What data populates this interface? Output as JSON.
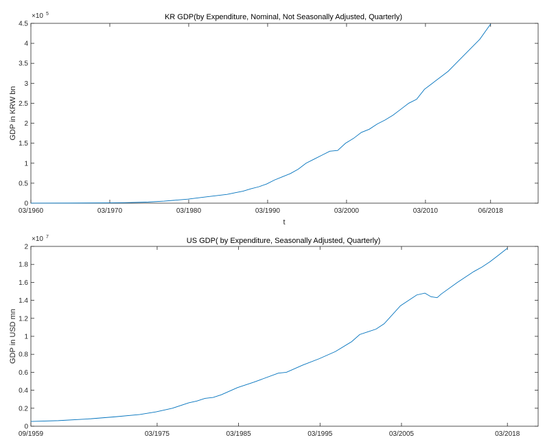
{
  "chart_data": [
    {
      "type": "line",
      "title": "KR GDP(by Expenditure, Nominal, Not Seasonally Adjusted, Quarterly)",
      "xlabel": "t",
      "ylabel": "GDP in KRW bn",
      "y_exponent_base": "×10",
      "y_exponent": "5",
      "x_range": [
        1960.125,
        2024.4
      ],
      "ylim": [
        0,
        4.5
      ],
      "x_ticks": [
        {
          "x": 1960.125,
          "label": "03/1960"
        },
        {
          "x": 1970.125,
          "label": "03/1970"
        },
        {
          "x": 1980.125,
          "label": "03/1980"
        },
        {
          "x": 1990.125,
          "label": "03/1990"
        },
        {
          "x": 2000.125,
          "label": "03/2000"
        },
        {
          "x": 2010.125,
          "label": "03/2010"
        },
        {
          "x": 2018.375,
          "label": "06/2018"
        }
      ],
      "y_ticks": [
        {
          "y": 0,
          "label": "0"
        },
        {
          "y": 0.5,
          "label": "0.5"
        },
        {
          "y": 1,
          "label": "1"
        },
        {
          "y": 1.5,
          "label": "1.5"
        },
        {
          "y": 2,
          "label": "2"
        },
        {
          "y": 2.5,
          "label": "2.5"
        },
        {
          "y": 3,
          "label": "3"
        },
        {
          "y": 3.5,
          "label": "3.5"
        },
        {
          "y": 4,
          "label": "4"
        },
        {
          "y": 4.5,
          "label": "4.5"
        }
      ],
      "grid": false,
      "series": [
        {
          "color": "#0072bd",
          "x": [
            1960.125,
            1965,
            1970,
            1972,
            1975,
            1977,
            1980,
            1982,
            1985,
            1986,
            1987,
            1988,
            1989,
            1990,
            1991,
            1992,
            1993,
            1994,
            1995,
            1996,
            1997,
            1998,
            1999,
            2000,
            2001,
            2002,
            2003,
            2004,
            2005,
            2006,
            2007,
            2008,
            2009,
            2010,
            2011,
            2012,
            2013,
            2014,
            2015,
            2016,
            2017,
            2018.375
          ],
          "y": [
            0.0005,
            0.002,
            0.007,
            0.012,
            0.028,
            0.05,
            0.1,
            0.15,
            0.22,
            0.26,
            0.3,
            0.36,
            0.41,
            0.48,
            0.58,
            0.66,
            0.74,
            0.85,
            1.0,
            1.1,
            1.2,
            1.3,
            1.32,
            1.5,
            1.62,
            1.77,
            1.85,
            1.98,
            2.08,
            2.2,
            2.35,
            2.5,
            2.6,
            2.85,
            3.0,
            3.15,
            3.3,
            3.5,
            3.7,
            3.9,
            4.1,
            4.48
          ]
        }
      ]
    },
    {
      "type": "line",
      "title": "US GDP( by Expenditure, Seasonally Adjusted, Quarterly)",
      "xlabel": "t",
      "ylabel": "GDP in USD mn",
      "y_exponent_base": "×10",
      "y_exponent": "7",
      "x_range": [
        1959.625,
        2021.9
      ],
      "ylim": [
        0,
        2
      ],
      "x_ticks": [
        {
          "x": 1959.625,
          "label": "09/1959"
        },
        {
          "x": 1975.125,
          "label": "03/1975"
        },
        {
          "x": 1985.125,
          "label": "03/1985"
        },
        {
          "x": 1995.125,
          "label": "03/1995"
        },
        {
          "x": 2005.125,
          "label": "03/2005"
        },
        {
          "x": 2018.125,
          "label": "03/2018"
        }
      ],
      "y_ticks": [
        {
          "y": 0,
          "label": "0"
        },
        {
          "y": 0.2,
          "label": "0.2"
        },
        {
          "y": 0.4,
          "label": "0.4"
        },
        {
          "y": 0.6,
          "label": "0.6"
        },
        {
          "y": 0.8,
          "label": "0.8"
        },
        {
          "y": 1,
          "label": "1"
        },
        {
          "y": 1.2,
          "label": "1.2"
        },
        {
          "y": 1.4,
          "label": "1.4"
        },
        {
          "y": 1.6,
          "label": "1.6"
        },
        {
          "y": 1.8,
          "label": "1.8"
        },
        {
          "y": 2,
          "label": "2"
        }
      ],
      "grid": false,
      "series": [
        {
          "color": "#0072bd",
          "x": [
            1959.625,
            1963,
            1967,
            1970,
            1973,
            1975,
            1977,
            1979,
            1980,
            1981,
            1982,
            1983,
            1985,
            1987,
            1990,
            1991,
            1993,
            1995,
            1997,
            1999,
            2000,
            2001,
            2002,
            2003,
            2005,
            2007,
            2008,
            2008.75,
            2009.5,
            2010,
            2012,
            2014,
            2015,
            2016,
            2017,
            2018.125
          ],
          "y": [
            0.053,
            0.062,
            0.083,
            0.105,
            0.13,
            0.16,
            0.2,
            0.26,
            0.28,
            0.31,
            0.32,
            0.35,
            0.43,
            0.49,
            0.59,
            0.6,
            0.68,
            0.75,
            0.83,
            0.94,
            1.02,
            1.05,
            1.08,
            1.14,
            1.34,
            1.46,
            1.48,
            1.44,
            1.43,
            1.47,
            1.6,
            1.72,
            1.77,
            1.83,
            1.9,
            1.98
          ]
        }
      ]
    }
  ]
}
